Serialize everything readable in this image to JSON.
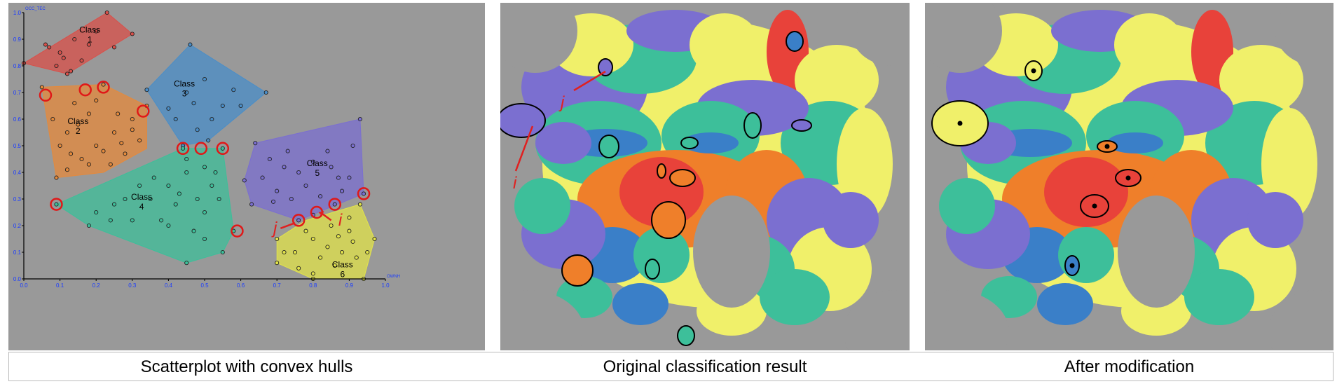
{
  "captions": {
    "scatter": "Scatterplot with convex hulls",
    "original": "Original classification result",
    "modified": "After modification"
  },
  "chart_data": {
    "type": "scatter",
    "xlabel": "OWNH",
    "ylabel": "OCC_TEC",
    "xlim": [
      0,
      1.0
    ],
    "ylim": [
      0,
      1.0
    ],
    "x_ticks": [
      "0.0",
      "0.1",
      "0.2",
      "0.3",
      "0.4",
      "0.5",
      "0.6",
      "0.7",
      "0.8",
      "0.9",
      "1.0"
    ],
    "y_ticks": [
      "0.0",
      "0.1",
      "0.2",
      "0.3",
      "0.4",
      "0.5",
      "0.6",
      "0.7",
      "0.8",
      "0.9",
      "1.0"
    ],
    "grid": false,
    "annotations": [
      {
        "text": "i",
        "color": "#e02020"
      },
      {
        "text": "j",
        "color": "#e02020"
      }
    ],
    "series": [
      {
        "name": "Class 1",
        "label_lines": [
          "Class",
          "1"
        ],
        "color": "#d9504a",
        "hull": [
          [
            0.0,
            0.81
          ],
          [
            0.12,
            0.77
          ],
          [
            0.3,
            0.92
          ],
          [
            0.23,
            1.0
          ]
        ],
        "points": [
          [
            0.23,
            1.0
          ],
          [
            0.3,
            0.92
          ],
          [
            0.0,
            0.81
          ],
          [
            0.12,
            0.77
          ],
          [
            0.07,
            0.87
          ],
          [
            0.1,
            0.85
          ],
          [
            0.14,
            0.9
          ],
          [
            0.18,
            0.88
          ],
          [
            0.2,
            0.93
          ],
          [
            0.16,
            0.82
          ],
          [
            0.09,
            0.8
          ],
          [
            0.13,
            0.78
          ],
          [
            0.06,
            0.88
          ],
          [
            0.25,
            0.87
          ],
          [
            0.11,
            0.83
          ]
        ]
      },
      {
        "name": "Class 2",
        "label_lines": [
          "Class",
          "2"
        ],
        "color": "#e58a3c",
        "hull": [
          [
            0.05,
            0.72
          ],
          [
            0.22,
            0.73
          ],
          [
            0.34,
            0.65
          ],
          [
            0.34,
            0.49
          ],
          [
            0.22,
            0.4
          ],
          [
            0.09,
            0.38
          ]
        ],
        "points": [
          [
            0.05,
            0.72
          ],
          [
            0.22,
            0.73
          ],
          [
            0.34,
            0.65
          ],
          [
            0.09,
            0.38
          ],
          [
            0.12,
            0.41
          ],
          [
            0.16,
            0.45
          ],
          [
            0.2,
            0.5
          ],
          [
            0.25,
            0.55
          ],
          [
            0.3,
            0.6
          ],
          [
            0.18,
            0.62
          ],
          [
            0.12,
            0.55
          ],
          [
            0.1,
            0.5
          ],
          [
            0.15,
            0.58
          ],
          [
            0.22,
            0.48
          ],
          [
            0.28,
            0.47
          ],
          [
            0.32,
            0.52
          ],
          [
            0.26,
            0.62
          ],
          [
            0.2,
            0.67
          ],
          [
            0.14,
            0.66
          ],
          [
            0.24,
            0.43
          ],
          [
            0.18,
            0.43
          ],
          [
            0.3,
            0.56
          ],
          [
            0.08,
            0.6
          ],
          [
            0.13,
            0.47
          ],
          [
            0.27,
            0.51
          ]
        ]
      },
      {
        "name": "Class 3",
        "label_lines": [
          "Class",
          "3"
        ],
        "color": "#4a8ec8",
        "hull": [
          [
            0.34,
            0.71
          ],
          [
            0.46,
            0.88
          ],
          [
            0.67,
            0.7
          ],
          [
            0.51,
            0.52
          ],
          [
            0.44,
            0.5
          ]
        ],
        "points": [
          [
            0.46,
            0.88
          ],
          [
            0.67,
            0.7
          ],
          [
            0.34,
            0.71
          ],
          [
            0.44,
            0.5
          ],
          [
            0.51,
            0.52
          ],
          [
            0.4,
            0.64
          ],
          [
            0.45,
            0.7
          ],
          [
            0.5,
            0.75
          ],
          [
            0.55,
            0.65
          ],
          [
            0.58,
            0.71
          ],
          [
            0.52,
            0.6
          ],
          [
            0.48,
            0.56
          ],
          [
            0.42,
            0.6
          ],
          [
            0.6,
            0.65
          ],
          [
            0.47,
            0.66
          ]
        ]
      },
      {
        "name": "Class 4",
        "label_lines": [
          "Class",
          "4"
        ],
        "color": "#3dbf9a",
        "hull": [
          [
            0.09,
            0.28
          ],
          [
            0.44,
            0.49
          ],
          [
            0.55,
            0.49
          ],
          [
            0.58,
            0.18
          ],
          [
            0.55,
            0.1
          ],
          [
            0.45,
            0.06
          ],
          [
            0.18,
            0.2
          ]
        ],
        "points": [
          [
            0.09,
            0.28
          ],
          [
            0.44,
            0.49
          ],
          [
            0.55,
            0.49
          ],
          [
            0.58,
            0.18
          ],
          [
            0.45,
            0.06
          ],
          [
            0.55,
            0.1
          ],
          [
            0.18,
            0.2
          ],
          [
            0.2,
            0.25
          ],
          [
            0.25,
            0.28
          ],
          [
            0.3,
            0.22
          ],
          [
            0.35,
            0.3
          ],
          [
            0.4,
            0.35
          ],
          [
            0.45,
            0.4
          ],
          [
            0.48,
            0.3
          ],
          [
            0.5,
            0.25
          ],
          [
            0.52,
            0.35
          ],
          [
            0.42,
            0.28
          ],
          [
            0.38,
            0.22
          ],
          [
            0.32,
            0.35
          ],
          [
            0.28,
            0.3
          ],
          [
            0.47,
            0.18
          ],
          [
            0.5,
            0.15
          ],
          [
            0.54,
            0.3
          ],
          [
            0.45,
            0.45
          ],
          [
            0.5,
            0.42
          ],
          [
            0.4,
            0.2
          ],
          [
            0.36,
            0.38
          ],
          [
            0.24,
            0.22
          ],
          [
            0.53,
            0.4
          ],
          [
            0.43,
            0.32
          ]
        ]
      },
      {
        "name": "Class 5",
        "label_lines": [
          "Class",
          "5"
        ],
        "color": "#7b6fd0",
        "hull": [
          [
            0.64,
            0.51
          ],
          [
            0.93,
            0.6
          ],
          [
            0.94,
            0.32
          ],
          [
            0.76,
            0.22
          ],
          [
            0.63,
            0.28
          ],
          [
            0.61,
            0.37
          ]
        ],
        "points": [
          [
            0.93,
            0.6
          ],
          [
            0.64,
            0.51
          ],
          [
            0.61,
            0.37
          ],
          [
            0.63,
            0.28
          ],
          [
            0.76,
            0.22
          ],
          [
            0.94,
            0.32
          ],
          [
            0.8,
            0.24
          ],
          [
            0.86,
            0.28
          ],
          [
            0.68,
            0.45
          ],
          [
            0.72,
            0.42
          ],
          [
            0.76,
            0.4
          ],
          [
            0.8,
            0.44
          ],
          [
            0.85,
            0.42
          ],
          [
            0.9,
            0.38
          ],
          [
            0.7,
            0.33
          ],
          [
            0.74,
            0.3
          ],
          [
            0.78,
            0.35
          ],
          [
            0.82,
            0.31
          ],
          [
            0.88,
            0.33
          ],
          [
            0.66,
            0.38
          ],
          [
            0.84,
            0.48
          ],
          [
            0.91,
            0.5
          ],
          [
            0.73,
            0.48
          ],
          [
            0.69,
            0.29
          ],
          [
            0.87,
            0.38
          ]
        ]
      },
      {
        "name": "Class 6",
        "label_lines": [
          "Class",
          "6"
        ],
        "color": "#e2e34a",
        "hull": [
          [
            0.7,
            0.15
          ],
          [
            0.78,
            0.22
          ],
          [
            0.93,
            0.28
          ],
          [
            0.97,
            0.15
          ],
          [
            0.94,
            0.0
          ],
          [
            0.8,
            0.0
          ],
          [
            0.7,
            0.06
          ]
        ],
        "points": [
          [
            0.7,
            0.15
          ],
          [
            0.93,
            0.28
          ],
          [
            0.97,
            0.15
          ],
          [
            0.94,
            0.0
          ],
          [
            0.8,
            0.0
          ],
          [
            0.7,
            0.06
          ],
          [
            0.75,
            0.1
          ],
          [
            0.8,
            0.15
          ],
          [
            0.85,
            0.2
          ],
          [
            0.9,
            0.18
          ],
          [
            0.88,
            0.1
          ],
          [
            0.82,
            0.08
          ],
          [
            0.76,
            0.04
          ],
          [
            0.86,
            0.05
          ],
          [
            0.92,
            0.08
          ],
          [
            0.78,
            0.18
          ],
          [
            0.84,
            0.12
          ],
          [
            0.9,
            0.23
          ],
          [
            0.95,
            0.1
          ],
          [
            0.72,
            0.1
          ],
          [
            0.87,
            0.16
          ],
          [
            0.8,
            0.02
          ],
          [
            0.91,
            0.14
          ]
        ]
      }
    ],
    "circled_points": [
      [
        0.06,
        0.69
      ],
      [
        0.17,
        0.71
      ],
      [
        0.22,
        0.72
      ],
      [
        0.33,
        0.63
      ],
      [
        0.44,
        0.49
      ],
      [
        0.49,
        0.49
      ],
      [
        0.55,
        0.49
      ],
      [
        0.09,
        0.28
      ],
      [
        0.59,
        0.18
      ],
      [
        0.76,
        0.22
      ],
      [
        0.81,
        0.25
      ],
      [
        0.86,
        0.28
      ],
      [
        0.94,
        0.32
      ]
    ]
  },
  "maps": {
    "palette": {
      "purple": "#7b6fd0",
      "teal": "#3dbf9a",
      "yellow": "#f0f06a",
      "orange": "#ef7f2a",
      "red": "#e8423a",
      "blue": "#3a7fc8",
      "gray": "#999999"
    },
    "annotations": [
      {
        "text": "i",
        "color": "#e02020"
      },
      {
        "text": "j",
        "color": "#e02020"
      }
    ]
  }
}
